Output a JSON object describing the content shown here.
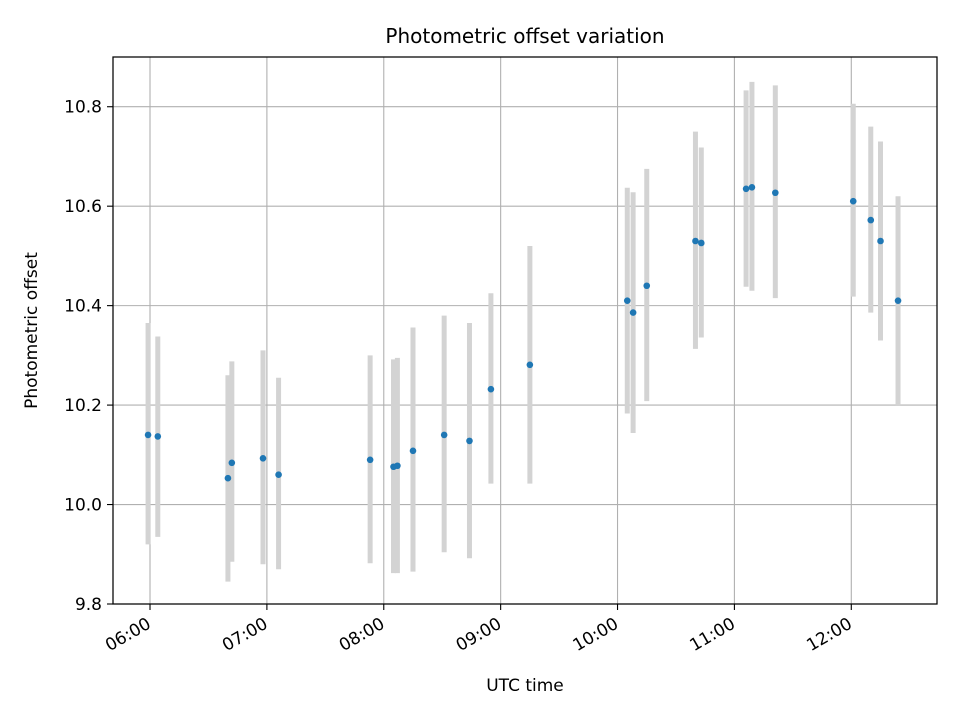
{
  "chart_data": {
    "type": "scatter",
    "title": "Photometric offset variation",
    "xlabel": "UTC time",
    "ylabel": "Photometric offset",
    "x_unit": "UTC time (HH:MM)",
    "xlim": [
      "05:41",
      "12:44"
    ],
    "ylim": [
      9.8,
      10.9
    ],
    "x_ticks": [
      "06:00",
      "07:00",
      "08:00",
      "09:00",
      "10:00",
      "11:00",
      "12:00"
    ],
    "y_ticks": [
      "9.8",
      "10.0",
      "10.2",
      "10.4",
      "10.6",
      "10.8"
    ],
    "grid": true,
    "colors": {
      "points": "#1f77b4",
      "error_bars": "#d3d3d3",
      "grid": "#b0b0b0"
    },
    "points": [
      {
        "time": "05:59",
        "y": 10.14,
        "ylow": 9.92,
        "yhigh": 10.365
      },
      {
        "time": "06:04",
        "y": 10.137,
        "ylow": 9.935,
        "yhigh": 10.338
      },
      {
        "time": "06:40",
        "y": 10.053,
        "ylow": 9.845,
        "yhigh": 10.26
      },
      {
        "time": "06:42",
        "y": 10.084,
        "ylow": 9.885,
        "yhigh": 10.288
      },
      {
        "time": "06:58",
        "y": 10.093,
        "ylow": 9.88,
        "yhigh": 10.31
      },
      {
        "time": "07:06",
        "y": 10.06,
        "ylow": 9.87,
        "yhigh": 10.255
      },
      {
        "time": "07:53",
        "y": 10.09,
        "ylow": 9.882,
        "yhigh": 10.3
      },
      {
        "time": "08:05",
        "y": 10.076,
        "ylow": 9.862,
        "yhigh": 10.292
      },
      {
        "time": "08:07",
        "y": 10.078,
        "ylow": 9.862,
        "yhigh": 10.295
      },
      {
        "time": "08:15",
        "y": 10.108,
        "ylow": 9.865,
        "yhigh": 10.356
      },
      {
        "time": "08:31",
        "y": 10.14,
        "ylow": 9.904,
        "yhigh": 10.38
      },
      {
        "time": "08:44",
        "y": 10.128,
        "ylow": 9.892,
        "yhigh": 10.365
      },
      {
        "time": "08:55",
        "y": 10.232,
        "ylow": 10.042,
        "yhigh": 10.425
      },
      {
        "time": "09:15",
        "y": 10.281,
        "ylow": 10.042,
        "yhigh": 10.52
      },
      {
        "time": "10:05",
        "y": 10.41,
        "ylow": 10.183,
        "yhigh": 10.637
      },
      {
        "time": "10:08",
        "y": 10.386,
        "ylow": 10.144,
        "yhigh": 10.628
      },
      {
        "time": "10:15",
        "y": 10.44,
        "ylow": 10.208,
        "yhigh": 10.675
      },
      {
        "time": "10:40",
        "y": 10.53,
        "ylow": 10.313,
        "yhigh": 10.75
      },
      {
        "time": "10:43",
        "y": 10.526,
        "ylow": 10.336,
        "yhigh": 10.718
      },
      {
        "time": "11:06",
        "y": 10.635,
        "ylow": 10.438,
        "yhigh": 10.833
      },
      {
        "time": "11:09",
        "y": 10.638,
        "ylow": 10.43,
        "yhigh": 10.85
      },
      {
        "time": "11:21",
        "y": 10.627,
        "ylow": 10.415,
        "yhigh": 10.843
      },
      {
        "time": "12:01",
        "y": 10.61,
        "ylow": 10.418,
        "yhigh": 10.806
      },
      {
        "time": "12:10",
        "y": 10.572,
        "ylow": 10.386,
        "yhigh": 10.76
      },
      {
        "time": "12:15",
        "y": 10.53,
        "ylow": 10.33,
        "yhigh": 10.73
      },
      {
        "time": "12:24",
        "y": 10.41,
        "ylow": 10.2,
        "yhigh": 10.62
      }
    ]
  }
}
